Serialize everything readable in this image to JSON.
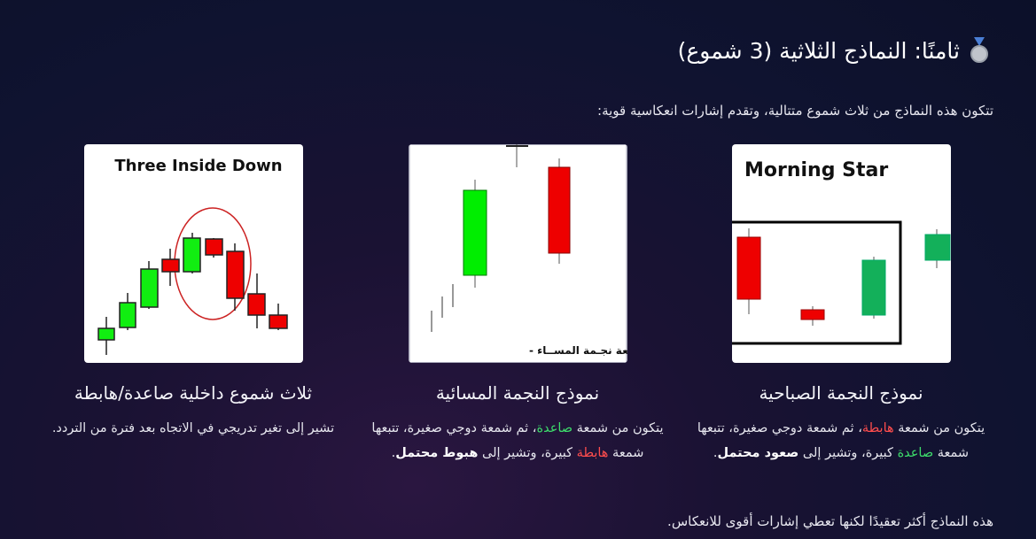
{
  "header": {
    "title": "ثامنًا: النماذج الثلاثية (3 شموع)"
  },
  "intro": "تتكون هذه النماذج من ثلاث شموع متتالية، وتقدم إشارات انعكاسية قوية:",
  "cards": [
    {
      "image_text": "Morning Star",
      "title": "نموذج النجمة الصباحية",
      "description": [
        {
          "text": "يتكون من شمعة ",
          "style": "normal"
        },
        {
          "text": "هابطة",
          "style": "red"
        },
        {
          "text": "، ثم شمعة دوجي صغيرة، تتبعها شمعة ",
          "style": "normal"
        },
        {
          "text": "صاعدة",
          "style": "green"
        },
        {
          "text": " كبيرة، وتشير إلى ",
          "style": "normal"
        },
        {
          "text": "صعود محتمل",
          "style": "bold"
        },
        {
          "text": ".",
          "style": "normal"
        }
      ]
    },
    {
      "image_text": "شمعة نجـمة المســاء -",
      "title": "نموذج النجمة المسائية",
      "description": [
        {
          "text": "يتكون من شمعة ",
          "style": "normal"
        },
        {
          "text": "صاعدة",
          "style": "green"
        },
        {
          "text": "، ثم شمعة دوجي صغيرة، تتبعها شمعة ",
          "style": "normal"
        },
        {
          "text": "هابطة",
          "style": "red"
        },
        {
          "text": " كبيرة، وتشير إلى ",
          "style": "normal"
        },
        {
          "text": "هبوط محتمل",
          "style": "bold"
        },
        {
          "text": ".",
          "style": "normal"
        }
      ]
    },
    {
      "image_text": "Three Inside Down",
      "title": "ثلاث شموع داخلية صاعدة/هابطة",
      "description": [
        {
          "text": "تشير إلى تغير تدريجي في الاتجاه بعد فترة من التردد.",
          "style": "normal"
        }
      ]
    }
  ],
  "footer": "هذه النماذج أكثر تعقيدًا لكنها تعطي إشارات أقوى للانعكاس."
}
